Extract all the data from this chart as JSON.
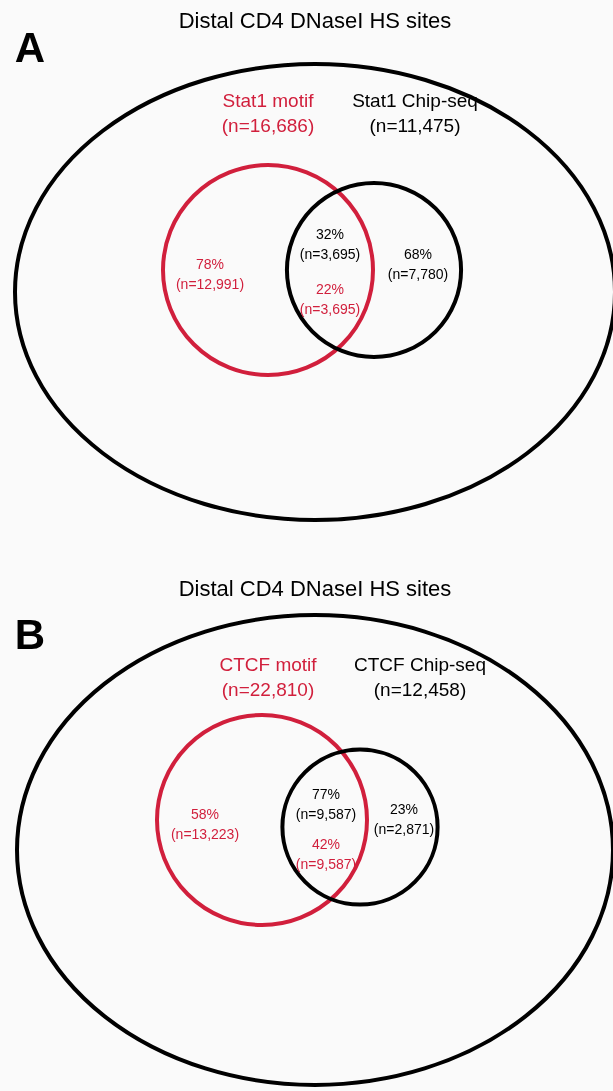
{
  "chart_data": [
    {
      "type": "other",
      "title": "Distal CD4 DNaseI HS sites",
      "categories": [
        "Stat1 motif",
        "Stat1 Chip-seq"
      ],
      "values": [
        16686,
        11475
      ],
      "value_labels": [
        "(n=16,686)",
        "(n=11,475)"
      ],
      "colors": [
        "#d11f3c",
        "#000000"
      ],
      "annotations": [
        "A",
        "78%",
        "(n=12,991)",
        "22%",
        "(n=3,695)",
        "32%",
        "(n=3,695)",
        "68%",
        "(n=7,780)"
      ]
    },
    {
      "type": "other",
      "title": "Distal CD4 DNaseI HS sites",
      "categories": [
        "CTCF motif",
        "CTCF Chip-seq"
      ],
      "values": [
        22810,
        12458
      ],
      "value_labels": [
        "(n=22,810)",
        "(n=12,458)"
      ],
      "colors": [
        "#d11f3c",
        "#000000"
      ],
      "annotations": [
        "B",
        "58%",
        "(n=13,223)",
        "42%",
        "(n=9,587)",
        "77%",
        "(n=9,587)",
        "23%",
        "(n=2,871)"
      ]
    }
  ]
}
